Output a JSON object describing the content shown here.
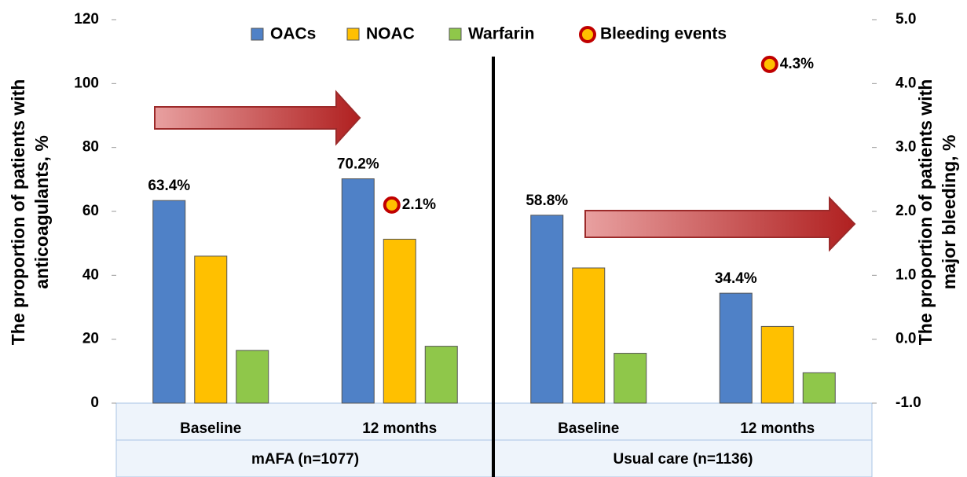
{
  "chart_data": {
    "type": "bar",
    "categories": [
      "Baseline",
      "12 months",
      "Baseline",
      "12 months"
    ],
    "groups": [
      "mAFA (n=1077)",
      "Usual care (n=1136)"
    ],
    "series": [
      {
        "name": "OACs",
        "color": "#4f81c7",
        "values": [
          63.4,
          70.2,
          58.8,
          34.4
        ],
        "value_labels": [
          "63.4%",
          "70.2%",
          "58.8%",
          "34.4%"
        ]
      },
      {
        "name": "NOAC",
        "color": "#ffc000",
        "values": [
          46,
          51.3,
          42.3,
          24
        ]
      },
      {
        "name": "Warfarin",
        "color": "#8fc74a",
        "values": [
          16.5,
          17.8,
          15.6,
          9.5
        ]
      },
      {
        "name": "Bleeding events",
        "color": "#c00000",
        "axis": "y2",
        "values": [
          null,
          2.1,
          null,
          4.3
        ],
        "value_labels": [
          null,
          "2.1%",
          null,
          "4.3%"
        ]
      }
    ],
    "ylabel": [
      "The proportion of patients with",
      "anticoagulants, %"
    ],
    "y2label": [
      "The proportion of patients with",
      "major bleeding, %"
    ],
    "ylim": [
      0,
      120
    ],
    "yticks": [
      0,
      20,
      40,
      60,
      80,
      100,
      120
    ],
    "y2lim": [
      -1,
      5
    ],
    "y2ticks": [
      {
        "value": -1,
        "label": "-1.0"
      },
      {
        "value": 0,
        "label": "0.0"
      },
      {
        "value": 1,
        "label": "1.0"
      },
      {
        "value": 2,
        "label": "2.0"
      },
      {
        "value": 3,
        "label": "3.0"
      },
      {
        "value": 4,
        "label": "4.0"
      },
      {
        "value": 5,
        "label": "5.0"
      }
    ],
    "legend": "top"
  }
}
